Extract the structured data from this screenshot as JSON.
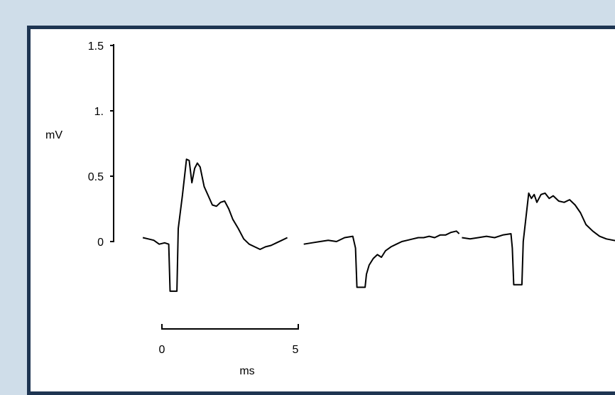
{
  "colors": {
    "background": "#cfdde9",
    "frame_border": "#1e3552",
    "trace": "#000000"
  },
  "chart_data": {
    "type": "line",
    "title": "",
    "ylabel": "mV",
    "yticks": [
      {
        "value": 0,
        "label": "0"
      },
      {
        "value": 0.5,
        "label": "0.5"
      },
      {
        "value": 1.0,
        "label": "1."
      },
      {
        "value": 1.5,
        "label": "1.5"
      }
    ],
    "ylim": [
      -0.4,
      1.5
    ],
    "scalebar": {
      "start_label": "0",
      "end_label": "5",
      "unit_label": "ms",
      "length_ms": 5
    },
    "xlim": [
      0,
      17.5
    ],
    "series": [
      {
        "x": [
          -0.7,
          -0.5,
          -0.3,
          -0.1,
          0.1,
          0.25,
          0.3,
          0.35,
          0.55,
          0.6,
          0.75,
          0.9,
          1.0,
          1.1,
          1.2,
          1.3,
          1.4,
          1.55,
          1.7,
          1.85,
          2.0,
          2.15,
          2.3,
          2.45,
          2.6,
          2.8,
          3.0,
          3.2,
          3.4,
          3.6,
          3.8,
          4.0,
          4.2,
          4.4,
          4.6
        ],
        "y": [
          0.03,
          0.02,
          0.01,
          -0.02,
          -0.01,
          -0.02,
          -0.38,
          -0.38,
          -0.38,
          0.1,
          0.35,
          0.63,
          0.62,
          0.45,
          0.56,
          0.6,
          0.57,
          0.42,
          0.35,
          0.28,
          0.27,
          0.3,
          0.31,
          0.25,
          0.17,
          0.1,
          0.02,
          -0.02,
          -0.04,
          -0.06,
          -0.04,
          -0.03,
          -0.01,
          0.01,
          0.03
        ]
      },
      {
        "x": [
          5.2,
          5.5,
          5.8,
          6.1,
          6.4,
          6.7,
          7.0,
          7.1,
          7.15,
          7.45,
          7.5,
          7.6,
          7.75,
          7.9,
          8.05,
          8.2,
          8.4,
          8.6,
          8.8,
          9.0,
          9.2,
          9.4,
          9.6,
          9.8,
          10.0,
          10.2,
          10.4,
          10.6,
          10.8,
          10.9
        ],
        "y": [
          -0.02,
          -0.01,
          0.0,
          0.01,
          0.0,
          0.03,
          0.04,
          -0.05,
          -0.35,
          -0.35,
          -0.25,
          -0.18,
          -0.13,
          -0.1,
          -0.12,
          -0.07,
          -0.04,
          -0.02,
          0.0,
          0.01,
          0.02,
          0.03,
          0.03,
          0.04,
          0.03,
          0.05,
          0.05,
          0.07,
          0.08,
          0.06
        ]
      },
      {
        "x": [
          11.0,
          11.3,
          11.6,
          11.9,
          12.2,
          12.5,
          12.8,
          12.85,
          12.9,
          13.2,
          13.25,
          13.45,
          13.55,
          13.65,
          13.75,
          13.9,
          14.05,
          14.2,
          14.35,
          14.55,
          14.75,
          14.95,
          15.15,
          15.35,
          15.55,
          15.8,
          16.05,
          16.3,
          16.55,
          16.8
        ],
        "y": [
          0.03,
          0.02,
          0.03,
          0.04,
          0.03,
          0.05,
          0.06,
          -0.05,
          -0.33,
          -0.33,
          0.0,
          0.37,
          0.33,
          0.36,
          0.3,
          0.36,
          0.37,
          0.33,
          0.35,
          0.31,
          0.3,
          0.32,
          0.28,
          0.22,
          0.13,
          0.08,
          0.04,
          0.02,
          0.01,
          0.0
        ]
      }
    ]
  }
}
